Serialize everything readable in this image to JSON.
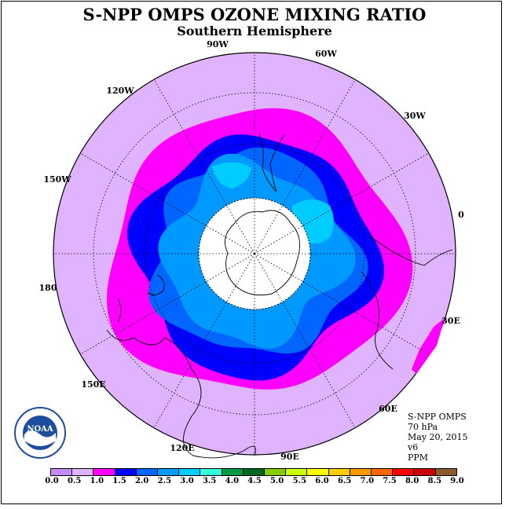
{
  "title": "S-NPP OMPS OZONE MIXING RATIO",
  "subtitle": "Southern Hemisphere",
  "longitude_labels": [
    "90W",
    "60W",
    "30W",
    "0",
    "30E",
    "60E",
    "90E",
    "120E",
    "150E",
    "180",
    "150W",
    "120W"
  ],
  "info": {
    "line1": "S-NPP OMPS",
    "line2": "70 hPa",
    "line3": "May 20, 2015",
    "line4": "v6",
    "line5": "PPM"
  },
  "logo_text": "NOAA",
  "colorbar": {
    "colors": [
      "#c68aff",
      "#e0b3ff",
      "#ff00ff",
      "#0000ff",
      "#0066ff",
      "#0099ff",
      "#00ccff",
      "#33ffdd",
      "#009944",
      "#006622",
      "#88cc00",
      "#ccff00",
      "#ffff00",
      "#ffcc00",
      "#ff9900",
      "#ff6600",
      "#ff0000",
      "#cc0000",
      "#8b5a2b"
    ],
    "ticks": [
      "0.0",
      "0.5",
      "1.0",
      "1.5",
      "2.0",
      "2.5",
      "3.0",
      "3.5",
      "4.0",
      "4.5",
      "5.0",
      "5.5",
      "6.0",
      "6.5",
      "7.0",
      "7.5",
      "8.0",
      "8.5",
      "9.0"
    ]
  },
  "map_colors": {
    "background": "#e0b3ff",
    "ring_magenta": "#ff00ff",
    "ring_blue": "#0000ff",
    "ring_mid": "#0066ff",
    "ring_light": "#0099ff",
    "ring_cyan": "#00ccff",
    "pole": "#ffffff"
  }
}
